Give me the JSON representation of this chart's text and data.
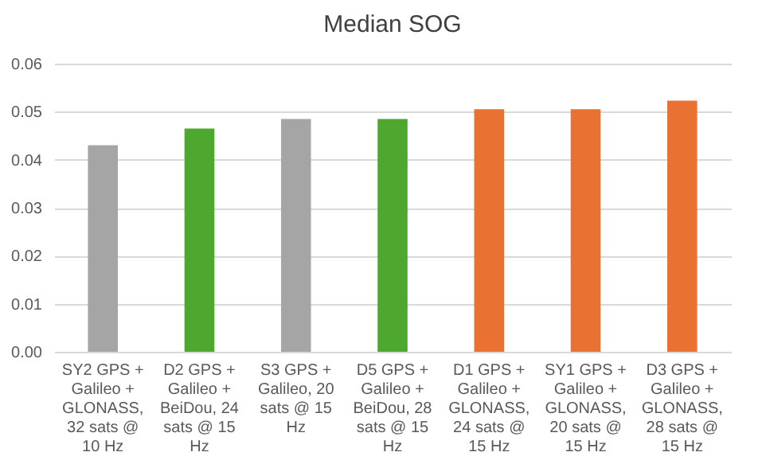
{
  "chart_data": {
    "type": "bar",
    "title": "Median SOG",
    "categories": [
      "SY2 GPS + Galileo + GLONASS, 32 sats @ 10 Hz",
      "D2 GPS + Galileo + BeiDou, 24 sats @ 15 Hz",
      "S3 GPS + Galileo, 20 sats @ 15 Hz",
      "D5 GPS + Galileo + BeiDou, 28 sats @ 15 Hz",
      "D1 GPS + Galileo + GLONASS, 24 sats @ 15 Hz",
      "SY1 GPS + Galileo + GLONASS, 20 sats @ 15 Hz",
      "D3 GPS + Galileo + GLONASS, 28 sats @ 15 Hz"
    ],
    "values": [
      0.043,
      0.0465,
      0.0485,
      0.0485,
      0.0505,
      0.0505,
      0.0523
    ],
    "colors": [
      "#a5a5a5",
      "#4ea72e",
      "#a5a5a5",
      "#4ea72e",
      "#e97132",
      "#e97132",
      "#e97132"
    ],
    "ylim": [
      0,
      0.06
    ],
    "yticks": [
      {
        "value": 0,
        "label": "0.00"
      },
      {
        "value": 0.01,
        "label": "0.01"
      },
      {
        "value": 0.02,
        "label": "0.02"
      },
      {
        "value": 0.03,
        "label": "0.03"
      },
      {
        "value": 0.04,
        "label": "0.04"
      },
      {
        "value": 0.05,
        "label": "0.05"
      },
      {
        "value": 0.06,
        "label": "0.06"
      }
    ],
    "grid": "y"
  }
}
